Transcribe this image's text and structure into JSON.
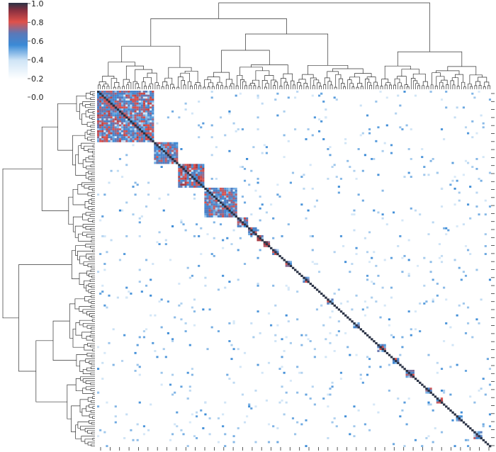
{
  "chart_data": {
    "type": "heatmap",
    "title": "",
    "xlabel": "",
    "ylabel": "",
    "clustered": true,
    "dendrograms": [
      "top",
      "left"
    ],
    "row_count": 180,
    "col_count": 180,
    "diagonal_value": 1.0,
    "colorbar": {
      "ticks": [
        "0.0",
        "0.2",
        "0.4",
        "0.6",
        "0.8",
        "1.0"
      ],
      "range": [
        0,
        1
      ],
      "colors": [
        "#ffffff",
        "#6aaee0",
        "#2f7fd0",
        "#e0514a",
        "#c0392b",
        "#2b3346"
      ]
    },
    "clusters": [
      {
        "start": 0,
        "size": 26,
        "level": 0.6
      },
      {
        "start": 26,
        "size": 11,
        "level": 0.55
      },
      {
        "start": 37,
        "size": 12,
        "level": 0.65
      },
      {
        "start": 49,
        "size": 15,
        "level": 0.55
      },
      {
        "start": 64,
        "size": 5,
        "level": 0.6
      },
      {
        "start": 69,
        "size": 4,
        "level": 0.7
      },
      {
        "start": 73,
        "size": 3,
        "level": 0.8
      },
      {
        "start": 76,
        "size": 3,
        "level": 0.85
      },
      {
        "start": 80,
        "size": 3,
        "level": 0.6
      },
      {
        "start": 86,
        "size": 3,
        "level": 0.6
      },
      {
        "start": 94,
        "size": 3,
        "level": 0.55
      },
      {
        "start": 105,
        "size": 3,
        "level": 0.6
      },
      {
        "start": 117,
        "size": 3,
        "level": 0.55
      },
      {
        "start": 128,
        "size": 4,
        "level": 0.6
      },
      {
        "start": 135,
        "size": 3,
        "level": 0.6
      },
      {
        "start": 141,
        "size": 4,
        "level": 0.55
      },
      {
        "start": 150,
        "size": 3,
        "level": 0.7
      },
      {
        "start": 155,
        "size": 3,
        "level": 0.6
      },
      {
        "start": 164,
        "size": 3,
        "level": 0.55
      },
      {
        "start": 172,
        "size": 4,
        "level": 0.5
      }
    ]
  }
}
